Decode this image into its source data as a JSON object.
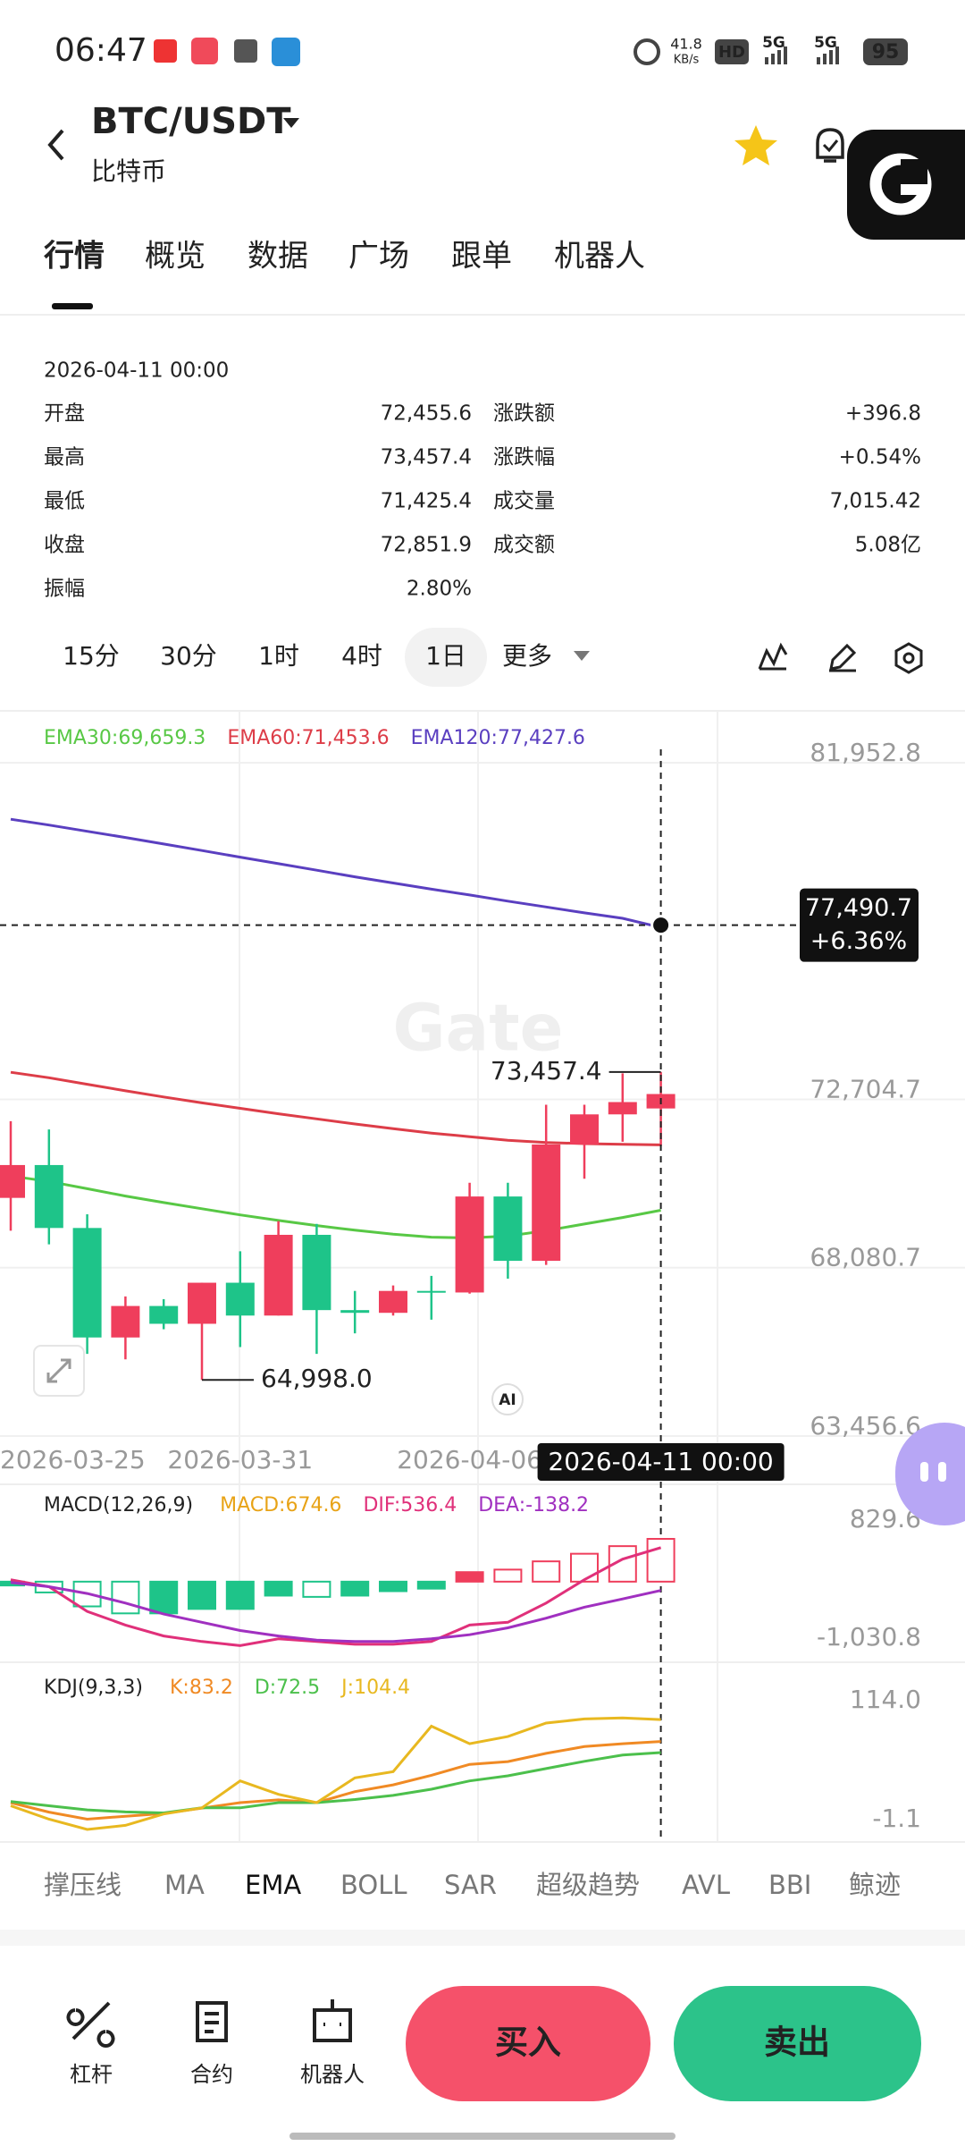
{
  "status_bar": {
    "time": "06:47",
    "net_speed": "41.8",
    "net_unit": "KB/s",
    "hd": "HD",
    "signals": [
      "5G",
      "5G"
    ],
    "battery": "95"
  },
  "header": {
    "pair": "BTC/USDT",
    "name": "比特币"
  },
  "tabs": [
    "行情",
    "概览",
    "数据",
    "广场",
    "跟单",
    "机器人"
  ],
  "ohlc": {
    "time": "2026-04-11 00:00",
    "rows": [
      [
        "开盘",
        "72,455.6",
        "涨跌额",
        "+396.8"
      ],
      [
        "最高",
        "73,457.4",
        "涨跌幅",
        "+0.54%"
      ],
      [
        "最低",
        "71,425.4",
        "成交量",
        "7,015.42"
      ],
      [
        "收盘",
        "72,851.9",
        "成交额",
        "5.08亿"
      ],
      [
        "振幅",
        "2.80%"
      ]
    ]
  },
  "intervals": [
    "15分",
    "30分",
    "1时",
    "4时",
    "1日",
    "更多"
  ],
  "selected_interval": 4,
  "watermark": "Gate",
  "ai_badge": "AI",
  "chart_data": [
    {
      "type": "candlestick",
      "categories": [
        "2026-03-25",
        null,
        null,
        null,
        null,
        null,
        "2026-03-31",
        null,
        null,
        null,
        null,
        null,
        "2026-04-06",
        null,
        null,
        null,
        null,
        "2026-04-11 00:00"
      ],
      "open": [
        69999,
        70901,
        69172,
        66164,
        67029,
        66540,
        67668,
        66766,
        68984,
        66916,
        66841,
        67443,
        67400,
        70037,
        68270,
        71466,
        72293,
        72455.6
      ],
      "high": [
        72105,
        71879,
        69548,
        67292,
        67217,
        67668,
        68533,
        69360,
        69285,
        67443,
        67593,
        67856,
        70413,
        70413,
        72556,
        72556,
        73421,
        73457.4
      ],
      "low": [
        69097,
        68721,
        65713,
        65563,
        66390,
        64998,
        65901,
        66766,
        65713,
        66277,
        66766,
        66653,
        67367,
        67781,
        68157,
        70526,
        71541,
        71425.4
      ],
      "close": [
        70901,
        69172,
        66164,
        67029,
        66540,
        67668,
        66766,
        68984,
        66916,
        66841,
        67443,
        67400,
        70037,
        68270,
        71466,
        72293,
        72631,
        72851.9
      ],
      "up_color": "#ef3e5c",
      "down_color": "#1ec489",
      "series": [
        {
          "name": "EMA30:69,659.3",
          "color": "#58c845",
          "values": [
            70600,
            70450,
            70250,
            70050,
            69870,
            69700,
            69530,
            69380,
            69240,
            69110,
            69000,
            68920,
            68900,
            68950,
            69100,
            69280,
            69460,
            69659.3
          ]
        },
        {
          "name": "EMA60:71,453.6",
          "color": "#dd3d48",
          "values": [
            73450,
            73300,
            73120,
            72940,
            72770,
            72610,
            72460,
            72310,
            72170,
            72030,
            71900,
            71780,
            71680,
            71580,
            71520,
            71490,
            71470,
            71453.6
          ]
        },
        {
          "name": "EMA120:77,427.6",
          "color": "#5a3fc0",
          "values": [
            80400,
            80240,
            80070,
            79900,
            79720,
            79540,
            79360,
            79180,
            79000,
            78820,
            78650,
            78480,
            78320,
            78150,
            77990,
            77830,
            77680,
            77427.6
          ]
        }
      ],
      "ylim": [
        62130,
        83378
      ],
      "yticks": [
        {
          "value": 63456.6,
          "label": "63,456.6"
        },
        {
          "value": 68080.7,
          "label": "68,080.7"
        },
        {
          "value": 72704.7,
          "label": "72,704.7"
        },
        {
          "value": 81952.8,
          "label": "81,952.8"
        }
      ],
      "grid": true,
      "annotations": [
        {
          "value": 73457.4,
          "label": "73,457.4"
        },
        {
          "value": 64998,
          "label": "64,998.0"
        }
      ],
      "crosshair": {
        "value": 77490.7,
        "label": "77,490.7",
        "change": "+6.36%"
      }
    },
    {
      "type": "macd",
      "title": "MACD(12,26,9)",
      "series": [
        {
          "name": "MACD:674.6",
          "color": "#e8a317",
          "kind": "bar",
          "values": [
            -60,
            -170,
            -390,
            -500,
            -500,
            -430,
            -430,
            -220,
            -240,
            -220,
            -150,
            -110,
            150,
            190,
            320,
            440,
            560,
            674.6
          ]
        },
        {
          "name": "DIF:536.4",
          "color": "#e0307a",
          "values": [
            30,
            -79,
            -468,
            -685,
            -857,
            -944,
            -1009,
            -901,
            -944,
            -987,
            -987,
            -944,
            -685,
            -641,
            -338,
            30,
            354,
            536.4
          ]
        },
        {
          "name": "DEA:-138.2",
          "color": "#a030c0",
          "values": [
            -14,
            -79,
            -187,
            -338,
            -511,
            -641,
            -771,
            -857,
            -922,
            -944,
            -944,
            -901,
            -836,
            -728,
            -576,
            -403,
            -273,
            -138.2
          ]
        }
      ],
      "ylim": [
        -1270.8,
        1534.6
      ],
      "yticks": [
        829.6,
        {
          "value": -1030.8,
          "label": "-1,030.8"
        }
      ]
    },
    {
      "type": "kdj",
      "title": "KDJ(9,3,3)",
      "series": [
        {
          "name": "K:83.2",
          "color": "#f08a24",
          "values": [
            24,
            14.8,
            8,
            10.8,
            13.5,
            18.7,
            24,
            26.7,
            24,
            34.6,
            41.2,
            50.5,
            61,
            63.7,
            71.7,
            78.3,
            81,
            83.2
          ]
        },
        {
          "name": "D:72.5",
          "color": "#4cc04c",
          "values": [
            25,
            21,
            17,
            15,
            14,
            19,
            19,
            24,
            24,
            27,
            31,
            37,
            45,
            50,
            57,
            64,
            70,
            72.5
          ]
        },
        {
          "name": "J:104.4",
          "color": "#e8b820",
          "values": [
            21,
            8,
            -2,
            2,
            13,
            19,
            45,
            32,
            24,
            48,
            54,
            98,
            81,
            88,
            101,
            105,
            106,
            104.4
          ]
        }
      ],
      "ylim": [
        -14.1,
        159.9
      ],
      "yticks": [
        {
          "value": 114,
          "label": "114.0"
        },
        -1.1
      ]
    }
  ],
  "indicator_tabs": [
    "撑压线",
    "MA",
    "EMA",
    "BOLL",
    "SAR",
    "超级趋势",
    "AVL",
    "BBI",
    "鲸迹"
  ],
  "selected_indicator": 2,
  "bottom_bar": {
    "tools": [
      "杠杆",
      "合约",
      "机器人"
    ],
    "buy": "买入",
    "sell": "卖出"
  }
}
